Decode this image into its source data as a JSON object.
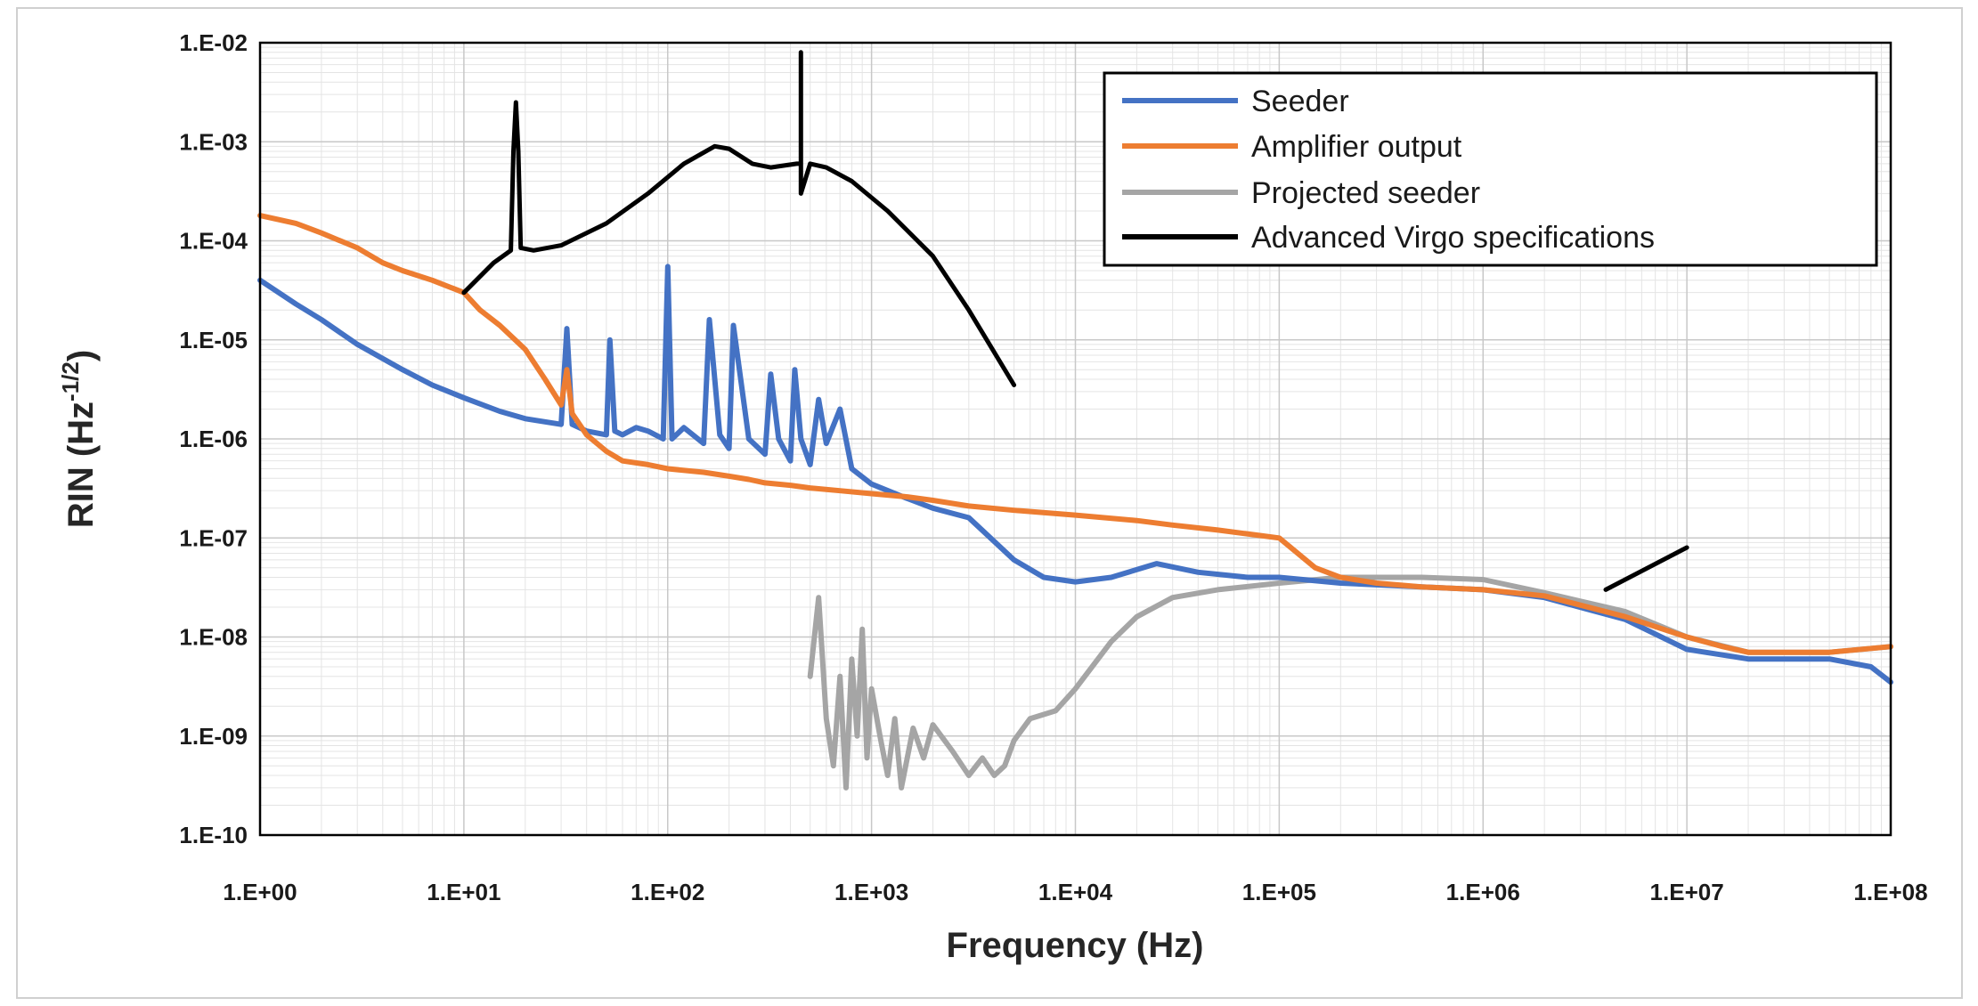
{
  "chart_data": {
    "type": "line",
    "title": "",
    "xlabel": "Frequency (Hz)",
    "ylabel": "RIN (Hz",
    "ylabel_sup": "-1/2",
    "ylabel_suffix": ")",
    "x_scale": "log",
    "y_scale": "log",
    "xlim": [
      1,
      100000000
    ],
    "ylim": [
      1e-10,
      0.01
    ],
    "grid": true,
    "legend_position": "top-right",
    "x_ticks": [
      {
        "value": 1,
        "label": "1.E+00"
      },
      {
        "value": 10,
        "label": "1.E+01"
      },
      {
        "value": 100,
        "label": "1.E+02"
      },
      {
        "value": 1000,
        "label": "1.E+03"
      },
      {
        "value": 10000,
        "label": "1.E+04"
      },
      {
        "value": 100000,
        "label": "1.E+05"
      },
      {
        "value": 1000000,
        "label": "1.E+06"
      },
      {
        "value": 10000000,
        "label": "1.E+07"
      },
      {
        "value": 100000000,
        "label": "1.E+08"
      }
    ],
    "y_ticks": [
      {
        "value": 0.01,
        "label": "1.E-02"
      },
      {
        "value": 0.001,
        "label": "1.E-03"
      },
      {
        "value": 0.0001,
        "label": "1.E-04"
      },
      {
        "value": 1e-05,
        "label": "1.E-05"
      },
      {
        "value": 1e-06,
        "label": "1.E-06"
      },
      {
        "value": 1e-07,
        "label": "1.E-07"
      },
      {
        "value": 1e-08,
        "label": "1.E-08"
      },
      {
        "value": 1e-09,
        "label": "1.E-09"
      },
      {
        "value": 1e-10,
        "label": "1.E-10"
      }
    ],
    "series": [
      {
        "name": "Seeder",
        "color": "#4472c4",
        "x": [
          1,
          1.5,
          2,
          3,
          5,
          7,
          10,
          15,
          20,
          30,
          32,
          34,
          40,
          50,
          52,
          55,
          60,
          70,
          80,
          95,
          100,
          105,
          120,
          150,
          160,
          180,
          200,
          210,
          250,
          300,
          320,
          350,
          400,
          420,
          450,
          500,
          550,
          600,
          700,
          800,
          1000,
          1500,
          2000,
          3000,
          5000,
          7000,
          10000,
          15000,
          25000,
          40000,
          70000,
          100000,
          200000,
          500000,
          1000000,
          2000000,
          5000000,
          10000000,
          20000000,
          50000000,
          80000000,
          100000000
        ],
        "y": [
          4e-05,
          2.3e-05,
          1.6e-05,
          9e-06,
          5e-06,
          3.5e-06,
          2.6e-06,
          1.9e-06,
          1.6e-06,
          1.4e-06,
          1.3e-05,
          1.4e-06,
          1.2e-06,
          1.1e-06,
          1e-05,
          1.2e-06,
          1.1e-06,
          1.3e-06,
          1.2e-06,
          1e-06,
          5.5e-05,
          1e-06,
          1.3e-06,
          9e-07,
          1.6e-05,
          1.1e-06,
          8e-07,
          1.4e-05,
          1e-06,
          7e-07,
          4.5e-06,
          1e-06,
          6e-07,
          5e-06,
          1e-06,
          5.5e-07,
          2.5e-06,
          9e-07,
          2e-06,
          5e-07,
          3.5e-07,
          2.5e-07,
          2e-07,
          1.6e-07,
          6e-08,
          4e-08,
          3.6e-08,
          4e-08,
          5.5e-08,
          4.5e-08,
          4e-08,
          4e-08,
          3.5e-08,
          3.2e-08,
          3e-08,
          2.5e-08,
          1.5e-08,
          7.5e-09,
          6e-09,
          6e-09,
          5e-09,
          3.5e-09
        ]
      },
      {
        "name": "Amplifier output",
        "color": "#ed7d31",
        "x": [
          1,
          1.5,
          2,
          3,
          4,
          5,
          7,
          10,
          12,
          15,
          20,
          25,
          30,
          32,
          34,
          40,
          50,
          60,
          80,
          100,
          150,
          200,
          250,
          300,
          400,
          500,
          700,
          1000,
          1500,
          2000,
          3000,
          5000,
          10000,
          20000,
          30000,
          50000,
          100000,
          150000,
          200000,
          300000,
          500000,
          1000000,
          2000000,
          5000000,
          10000000,
          15000000,
          20000000,
          50000000,
          100000000
        ],
        "y": [
          0.00018,
          0.00015,
          0.00012,
          8.5e-05,
          6e-05,
          5e-05,
          4e-05,
          3e-05,
          2e-05,
          1.4e-05,
          8e-06,
          4e-06,
          2.2e-06,
          5e-06,
          1.8e-06,
          1.1e-06,
          7.5e-07,
          6e-07,
          5.5e-07,
          5e-07,
          4.6e-07,
          4.2e-07,
          3.9e-07,
          3.6e-07,
          3.4e-07,
          3.2e-07,
          3e-07,
          2.8e-07,
          2.6e-07,
          2.4e-07,
          2.1e-07,
          1.9e-07,
          1.7e-07,
          1.5e-07,
          1.35e-07,
          1.2e-07,
          1e-07,
          5e-08,
          4e-08,
          3.5e-08,
          3.2e-08,
          3e-08,
          2.6e-08,
          1.6e-08,
          1e-08,
          8e-09,
          7e-09,
          7e-09,
          8e-09
        ]
      },
      {
        "name": "Projected seeder",
        "color": "#a5a5a5",
        "x": [
          500,
          550,
          600,
          650,
          700,
          750,
          800,
          850,
          900,
          950,
          1000,
          1100,
          1200,
          1300,
          1400,
          1600,
          1800,
          2000,
          2500,
          3000,
          3500,
          4000,
          4500,
          5000,
          6000,
          8000,
          10000,
          15000,
          20000,
          30000,
          50000,
          100000,
          200000,
          500000,
          1000000,
          2000000,
          5000000,
          10000000,
          20000000,
          50000000,
          100000000
        ],
        "y": [
          4e-09,
          2.5e-08,
          1.5e-09,
          5e-10,
          4e-09,
          3e-10,
          6e-09,
          1e-09,
          1.2e-08,
          6e-10,
          3e-09,
          1e-09,
          4e-10,
          1.5e-09,
          3e-10,
          1.2e-09,
          6e-10,
          1.3e-09,
          7e-10,
          4e-10,
          6e-10,
          4e-10,
          5e-10,
          9e-10,
          1.5e-09,
          1.8e-09,
          3e-09,
          9e-09,
          1.6e-08,
          2.5e-08,
          3e-08,
          3.5e-08,
          4e-08,
          4e-08,
          3.8e-08,
          2.8e-08,
          1.8e-08,
          1e-08,
          7e-09,
          7e-09,
          8e-09
        ]
      },
      {
        "name": "Advanced Virgo specifications",
        "color": "#000000",
        "segments": [
          {
            "x": [
              10,
              14,
              17,
              17.5,
              18,
              18.5,
              19,
              22,
              30,
              50,
              80,
              120,
              170,
              200,
              260,
              320,
              380,
              430,
              450,
              450,
              450,
              500,
              600,
              800,
              1200,
              2000,
              3000,
              5000
            ],
            "y": [
              3e-05,
              6e-05,
              8e-05,
              0.0008,
              0.0025,
              0.0008,
              8.5e-05,
              8e-05,
              9e-05,
              0.00015,
              0.0003,
              0.0006,
              0.0009,
              0.00085,
              0.0006,
              0.00055,
              0.00058,
              0.0006,
              0.0006,
              0.008,
              0.0003,
              0.0006,
              0.00055,
              0.0004,
              0.0002,
              7e-05,
              2e-05,
              3.5e-06
            ]
          },
          {
            "x": [
              4000000,
              10000000
            ],
            "y": [
              3e-08,
              8e-08
            ]
          }
        ]
      }
    ]
  }
}
